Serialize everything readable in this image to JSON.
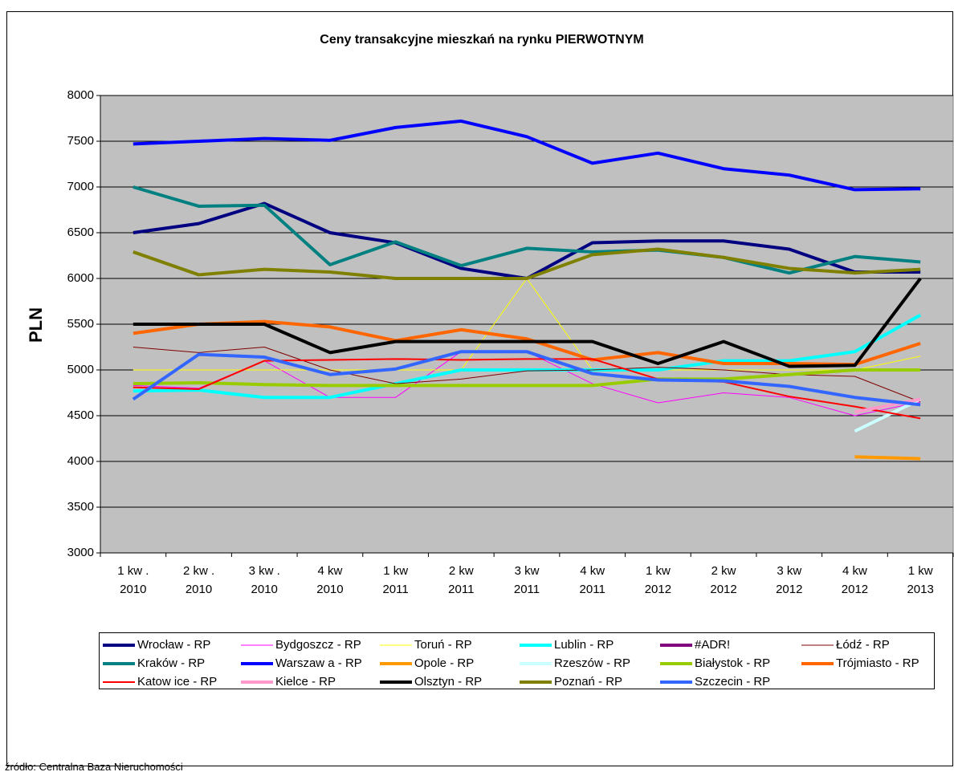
{
  "chart_data": {
    "type": "line",
    "title": "Ceny transakcyjne mieszkań na rynku PIERWOTNYM",
    "y_label": "PLN",
    "source": "źródło: Centralna Baza Nieruchomości",
    "categories": [
      "1 kw .\n2010",
      "2 kw .\n2010",
      "3 kw .\n2010",
      "4 kw\n2010",
      "1 kw\n2011",
      "2 kw\n2011",
      "3 kw\n2011",
      "4 kw\n2011",
      "1 kw\n2012",
      "2 kw\n2012",
      "3 kw\n2012",
      "4 kw\n2012",
      "1 kw\n2013"
    ],
    "ylim": [
      3000,
      8000
    ],
    "yticks": [
      3000,
      3500,
      4000,
      4500,
      5000,
      5500,
      6000,
      6500,
      7000,
      7500,
      8000
    ],
    "grid": true,
    "legend": "bottom",
    "series": [
      {
        "name": "Wrocław - RP",
        "color": "#000080",
        "width": 4,
        "values": [
          6500,
          6600,
          6820,
          6500,
          6390,
          6110,
          6000,
          6390,
          6410,
          6410,
          6320,
          6070,
          6070
        ]
      },
      {
        "name": "Bydgoszcz - RP",
        "color": "#ff00ff",
        "width": 1,
        "values": [
          4830,
          4800,
          5100,
          4700,
          4700,
          5200,
          5200,
          4850,
          4640,
          4750,
          4700,
          4500,
          4650
        ]
      },
      {
        "name": "Toruń - RP",
        "color": "#ffff00",
        "width": 1,
        "values": [
          5000,
          5000,
          5000,
          5000,
          5000,
          5000,
          6000,
          5000,
          5000,
          5000,
          5000,
          5000,
          5150
        ]
      },
      {
        "name": "Lublin - RP",
        "color": "#00ffff",
        "width": 4,
        "values": [
          4770,
          4780,
          4700,
          4700,
          4850,
          5000,
          5000,
          5000,
          5000,
          5100,
          5100,
          5200,
          5600
        ]
      },
      {
        "name": "#ADR!",
        "color": "#800080",
        "width": 4,
        "values": [
          null,
          null,
          null,
          null,
          null,
          null,
          null,
          null,
          null,
          null,
          null,
          null,
          null
        ]
      },
      {
        "name": "Łódź - RP",
        "color": "#800000",
        "width": 1,
        "values": [
          5250,
          5190,
          5250,
          5000,
          4850,
          4900,
          4990,
          5000,
          5030,
          5000,
          4950,
          4930,
          4650
        ]
      },
      {
        "name": "Kraków - RP",
        "color": "#008080",
        "width": 4,
        "values": [
          7000,
          6790,
          6800,
          6150,
          6400,
          6140,
          6330,
          6290,
          6310,
          6230,
          6060,
          6240,
          6180
        ]
      },
      {
        "name": "Warszaw a - RP",
        "color": "#0000ff",
        "width": 4,
        "values": [
          7470,
          7500,
          7530,
          7510,
          7650,
          7720,
          7550,
          7260,
          7370,
          7200,
          7130,
          6970,
          6980
        ]
      },
      {
        "name": "Opole - RP",
        "color": "#ff9900",
        "width": 4,
        "values": [
          null,
          null,
          null,
          null,
          null,
          null,
          null,
          null,
          null,
          null,
          null,
          4050,
          4030
        ]
      },
      {
        "name": "Rzeszów - RP",
        "color": "#ccffff",
        "width": 4,
        "values": [
          null,
          null,
          null,
          null,
          null,
          null,
          null,
          null,
          null,
          null,
          null,
          4330,
          4680
        ]
      },
      {
        "name": "Białystok - RP",
        "color": "#99cc00",
        "width": 4,
        "values": [
          4850,
          4860,
          4840,
          4830,
          4830,
          4830,
          4830,
          4830,
          4900,
          4900,
          4950,
          5000,
          5000
        ]
      },
      {
        "name": "Trójmiasto - RP",
        "color": "#ff6600",
        "width": 4,
        "values": [
          5400,
          5500,
          5530,
          5470,
          5320,
          5440,
          5340,
          5110,
          5190,
          5070,
          5070,
          5060,
          5290
        ]
      },
      {
        "name": "Katow ice - RP",
        "color": "#ff0000",
        "width": 2,
        "values": [
          4810,
          4790,
          5100,
          5110,
          5120,
          5110,
          5120,
          5120,
          4900,
          4870,
          4710,
          4600,
          4470
        ]
      },
      {
        "name": "Kielce - RP",
        "color": "#ff99cc",
        "width": 4,
        "values": [
          null,
          null,
          null,
          null,
          null,
          null,
          null,
          null,
          null,
          null,
          null,
          4540,
          4680
        ]
      },
      {
        "name": "Olsztyn - RP",
        "color": "#000000",
        "width": 4,
        "values": [
          5500,
          5500,
          5500,
          5190,
          5310,
          5310,
          5310,
          5310,
          5070,
          5310,
          5040,
          5050,
          6000
        ]
      },
      {
        "name": "Poznań - RP",
        "color": "#808000",
        "width": 4,
        "values": [
          6290,
          6040,
          6100,
          6070,
          6000,
          6000,
          6000,
          6260,
          6320,
          6230,
          6110,
          6060,
          6100
        ]
      },
      {
        "name": "Szczecin - RP",
        "color": "#3366ff",
        "width": 4,
        "values": [
          4680,
          5170,
          5140,
          4950,
          5010,
          5200,
          5200,
          4960,
          4890,
          4880,
          4820,
          4700,
          4620
        ]
      }
    ]
  }
}
